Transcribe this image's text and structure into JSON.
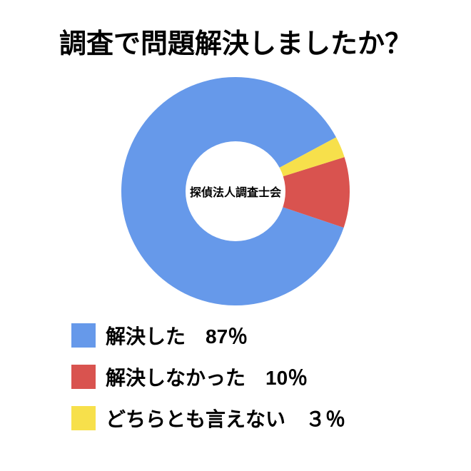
{
  "chart": {
    "type": "donut",
    "title": "調査で問題解決しましたか？",
    "title_fontsize": 38,
    "center_label": "探偵法人調査士会",
    "center_label_fontsize": 16,
    "background_color": "#ffffff",
    "outer_radius": 160,
    "inner_radius": 70,
    "start_angle_deg": -90,
    "slices": [
      {
        "label": "解決した",
        "value": 87,
        "color": "#6699ea"
      },
      {
        "label": "解決しなかった",
        "value": 10,
        "color": "#d9534f"
      },
      {
        "label": "どちらとも言えない",
        "value": 3,
        "color": "#f7e04b"
      }
    ],
    "legend": {
      "fontsize": 28,
      "swatch_size": 34,
      "items": [
        {
          "text": "解決した　87％",
          "color": "#6699ea"
        },
        {
          "text": "解決しなかった　10％",
          "color": "#d9534f"
        },
        {
          "text": "どちらとも言えない　３％",
          "color": "#f7e04b"
        }
      ]
    }
  }
}
